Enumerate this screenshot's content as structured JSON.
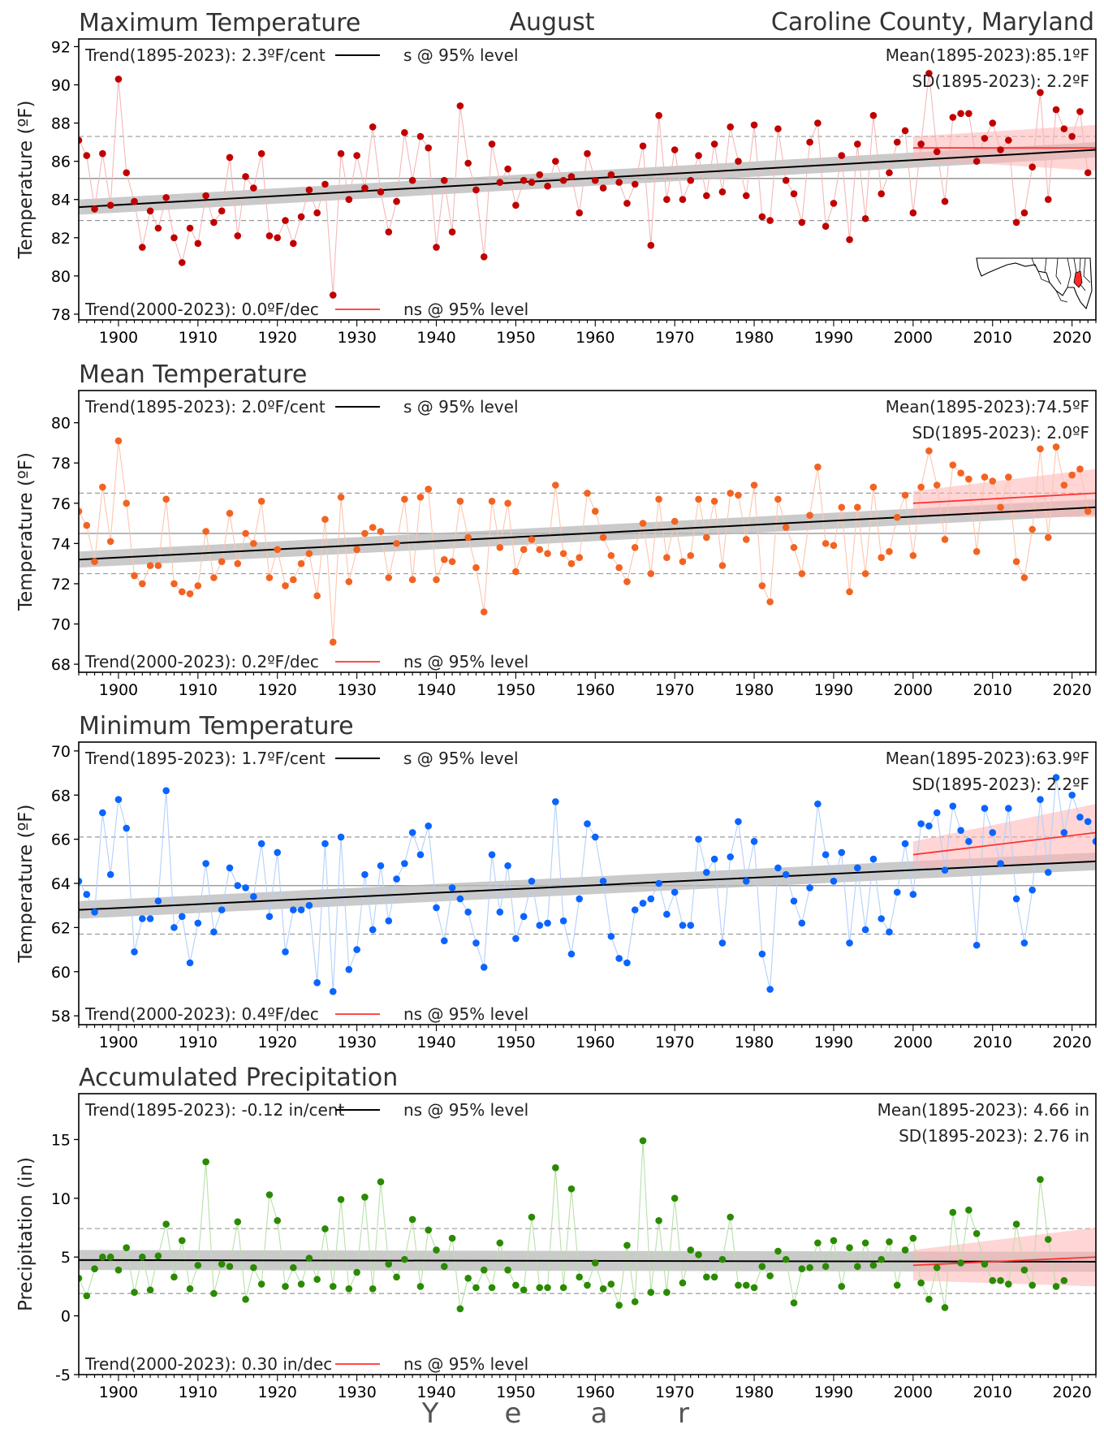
{
  "header": {
    "month": "August",
    "location": "Caroline County, Maryland"
  },
  "xaxis": {
    "label": "Y e a r",
    "letters": [
      "Y",
      "e",
      "a",
      "r"
    ],
    "ticks": [
      "1900",
      "1910",
      "1920",
      "1930",
      "1940",
      "1950",
      "1960",
      "1970",
      "1980",
      "1990",
      "2000",
      "2010",
      "2020"
    ],
    "range": [
      1895,
      2023
    ]
  },
  "colors": {
    "tmax": "#c00000",
    "tavg": "#f26322",
    "tmin": "#0a64ff",
    "pcpn": "#2a8a00",
    "trend_long": "#000000",
    "trend_recent": "#ff3333",
    "band_long": "#b8b8b8",
    "band_recent": "#ffb3b3"
  },
  "chart_data": [
    {
      "type": "line",
      "panel": "tmax",
      "title": "Maximum Temperature",
      "ylabel": "Temperature (ºF)",
      "yticks": [
        "78",
        "80",
        "82",
        "84",
        "86",
        "88",
        "90",
        "92"
      ],
      "ylim": [
        77.7,
        92.4
      ],
      "trend_long_text": "Trend(1895-2023):  2.3ºF/cent",
      "trend_long_sig": "s @ 95% level",
      "trend_recent_text": "Trend(2000-2023):  0.0ºF/dec",
      "trend_recent_sig": "ns @ 95% level",
      "mean_text": "Mean(1895-2023):85.1ºF",
      "sd_text": "SD(1895-2023): 2.2ºF",
      "mean": 85.1,
      "sd": 2.2,
      "trend_long": {
        "start": 83.6,
        "end": 86.6,
        "band": 0.4
      },
      "trend_recent": {
        "start": 86.7,
        "end": 86.7,
        "band_start": 0.6,
        "band_end": 1.2
      },
      "has_map": true,
      "years_start": 1895,
      "values": [
        87.1,
        86.3,
        83.5,
        86.4,
        83.7,
        90.3,
        85.4,
        83.9,
        81.5,
        83.4,
        82.5,
        84.1,
        82.0,
        80.7,
        82.5,
        81.7,
        84.2,
        82.8,
        83.4,
        86.2,
        82.1,
        85.2,
        84.6,
        86.4,
        82.1,
        82.0,
        82.9,
        81.7,
        83.1,
        84.5,
        83.3,
        84.8,
        79.0,
        86.4,
        84.0,
        86.3,
        84.6,
        87.8,
        84.4,
        82.3,
        83.9,
        87.5,
        85.0,
        87.3,
        86.7,
        81.5,
        85.0,
        82.3,
        88.9,
        85.9,
        84.5,
        81.0,
        86.9,
        84.9,
        85.6,
        83.7,
        85.0,
        84.9,
        85.3,
        84.7,
        86.0,
        85.0,
        85.2,
        83.3,
        86.4,
        85.0,
        84.6,
        85.3,
        84.9,
        83.8,
        84.8,
        86.8,
        81.6,
        88.4,
        84.0,
        86.6,
        84.0,
        85.0,
        86.3,
        84.2,
        86.9,
        84.4,
        87.8,
        86.0,
        84.2,
        87.9,
        83.1,
        82.9,
        87.7,
        85.0,
        84.3,
        82.8,
        87.0,
        88.0,
        82.6,
        83.8,
        86.3,
        81.9,
        86.9,
        83.0,
        88.4,
        84.3,
        85.4,
        87.0,
        87.6,
        83.3,
        86.9,
        90.6,
        86.5,
        83.9,
        88.3,
        88.5,
        88.5,
        86.0,
        87.2,
        88.0,
        86.6,
        87.1,
        82.8,
        83.3,
        85.7,
        89.6,
        84.0,
        88.7,
        87.7,
        87.3,
        88.6,
        85.4
      ]
    },
    {
      "type": "line",
      "panel": "tavg",
      "title": "Mean Temperature",
      "ylabel": "Temperature (ºF)",
      "yticks": [
        "68",
        "70",
        "72",
        "74",
        "76",
        "78",
        "80"
      ],
      "ylim": [
        67.6,
        81.6
      ],
      "trend_long_text": "Trend(1895-2023):  2.0ºF/cent",
      "trend_long_sig": "s @ 95% level",
      "trend_recent_text": "Trend(2000-2023):  0.2ºF/dec",
      "trend_recent_sig": "ns @ 95% level",
      "mean_text": "Mean(1895-2023):74.5ºF",
      "sd_text": "SD(1895-2023): 2.0ºF",
      "mean": 74.5,
      "sd": 2.0,
      "trend_long": {
        "start": 73.2,
        "end": 75.8,
        "band": 0.4
      },
      "trend_recent": {
        "start": 76.0,
        "end": 76.5,
        "band_start": 0.6,
        "band_end": 1.2
      },
      "has_map": false,
      "years_start": 1895,
      "values": [
        75.6,
        74.9,
        73.1,
        76.8,
        74.1,
        79.1,
        76.0,
        72.4,
        72.0,
        72.9,
        72.9,
        76.2,
        72.0,
        71.6,
        71.5,
        71.9,
        74.6,
        72.3,
        73.1,
        75.5,
        73.0,
        74.5,
        74.0,
        76.1,
        72.3,
        73.7,
        71.9,
        72.2,
        73.0,
        73.5,
        71.4,
        75.2,
        69.1,
        76.3,
        72.1,
        73.7,
        74.5,
        74.8,
        74.6,
        72.3,
        74.0,
        76.2,
        72.2,
        76.3,
        76.7,
        72.2,
        73.2,
        73.1,
        76.1,
        74.3,
        72.8,
        70.6,
        76.1,
        73.8,
        76.0,
        72.6,
        73.7,
        74.2,
        73.7,
        73.5,
        76.9,
        73.5,
        73.0,
        73.3,
        76.5,
        75.6,
        74.3,
        73.4,
        72.8,
        72.1,
        73.8,
        75.0,
        72.5,
        76.2,
        73.3,
        75.1,
        73.1,
        73.4,
        76.2,
        74.3,
        76.1,
        72.9,
        76.5,
        76.4,
        74.2,
        76.9,
        71.9,
        71.1,
        76.2,
        74.8,
        73.8,
        72.5,
        75.4,
        77.8,
        74.0,
        73.9,
        75.8,
        71.6,
        75.8,
        72.5,
        76.8,
        73.3,
        73.6,
        75.3,
        76.4,
        73.4,
        76.8,
        78.6,
        76.9,
        74.2,
        77.9,
        77.5,
        77.2,
        73.6,
        77.3,
        77.1,
        75.8,
        77.3,
        73.1,
        72.3,
        74.7,
        78.7,
        74.3,
        78.8,
        76.9,
        77.4,
        77.7,
        75.6
      ]
    },
    {
      "type": "line",
      "panel": "tmin",
      "title": "Minimum Temperature",
      "ylabel": "Temperature (ºF)",
      "yticks": [
        "58",
        "60",
        "62",
        "64",
        "66",
        "68",
        "70"
      ],
      "ylim": [
        57.6,
        70.4
      ],
      "trend_long_text": "Trend(1895-2023):  1.7ºF/cent",
      "trend_long_sig": "s @ 95% level",
      "trend_recent_text": "Trend(2000-2023):  0.4ºF/dec",
      "trend_recent_sig": "ns @ 95% level",
      "mean_text": "Mean(1895-2023):63.9ºF",
      "sd_text": "SD(1895-2023): 2.2ºF",
      "mean": 63.9,
      "sd": 2.2,
      "trend_long": {
        "start": 62.8,
        "end": 65.0,
        "band": 0.4
      },
      "trend_recent": {
        "start": 65.3,
        "end": 66.3,
        "band_start": 0.6,
        "band_end": 1.3
      },
      "has_map": false,
      "years_start": 1895,
      "values": [
        64.1,
        63.5,
        62.7,
        67.2,
        64.4,
        67.8,
        66.5,
        60.9,
        62.4,
        62.4,
        63.2,
        68.2,
        62.0,
        62.5,
        60.4,
        62.2,
        64.9,
        61.8,
        62.8,
        64.7,
        63.9,
        63.8,
        63.4,
        65.8,
        62.5,
        65.4,
        60.9,
        62.8,
        62.8,
        63.0,
        59.5,
        65.8,
        59.1,
        66.1,
        60.1,
        61.0,
        64.4,
        61.9,
        64.8,
        62.3,
        64.2,
        64.9,
        66.3,
        65.3,
        66.6,
        62.9,
        61.4,
        63.8,
        63.3,
        62.7,
        61.3,
        60.2,
        65.3,
        62.7,
        64.8,
        61.5,
        62.5,
        64.1,
        62.1,
        62.2,
        67.7,
        62.3,
        60.8,
        63.3,
        66.7,
        66.1,
        64.1,
        61.6,
        60.6,
        60.4,
        62.8,
        63.1,
        63.3,
        64.0,
        62.6,
        63.6,
        62.1,
        62.1,
        66.0,
        64.5,
        65.1,
        61.3,
        65.2,
        66.8,
        64.1,
        65.9,
        60.8,
        59.2,
        64.7,
        64.4,
        63.2,
        62.2,
        63.8,
        67.6,
        65.3,
        64.1,
        65.4,
        61.3,
        64.7,
        61.9,
        65.1,
        62.4,
        61.8,
        63.6,
        65.8,
        63.5,
        66.7,
        66.6,
        67.2,
        64.6,
        67.5,
        66.4,
        65.9,
        61.2,
        67.4,
        66.3,
        64.9,
        67.4,
        63.3,
        61.3,
        63.7,
        67.8,
        64.5,
        68.8,
        66.3,
        68.0,
        67.0,
        66.8,
        65.9
      ]
    },
    {
      "type": "line",
      "panel": "pcpn",
      "title": "Accumulated Precipitation",
      "ylabel": "Precipitation (in)",
      "yticks": [
        "-5",
        "0",
        "5",
        "10",
        "15"
      ],
      "ylim": [
        -5,
        18.9
      ],
      "trend_long_text": "Trend(1895-2023): -0.12 in/cent",
      "trend_long_sig": "ns @ 95% level",
      "trend_recent_text": "Trend(2000-2023):  0.30 in/dec",
      "trend_recent_sig": "ns @ 95% level",
      "mean_text": "Mean(1895-2023): 4.66 in",
      "sd_text": "SD(1895-2023): 2.76 in",
      "mean": 4.66,
      "sd": 2.76,
      "trend_long": {
        "start": 4.75,
        "end": 4.6,
        "band": 0.85
      },
      "trend_recent": {
        "start": 4.3,
        "end": 5.0,
        "band_start": 1.3,
        "band_end": 2.5
      },
      "has_map": false,
      "years_start": 1895,
      "values": [
        3.2,
        1.7,
        4.0,
        5.0,
        5.0,
        3.9,
        5.8,
        2.0,
        5.0,
        2.2,
        5.1,
        7.8,
        3.3,
        6.4,
        2.3,
        4.3,
        13.1,
        1.9,
        4.4,
        4.2,
        8.0,
        1.4,
        4.1,
        2.7,
        10.3,
        8.1,
        2.5,
        4.1,
        2.7,
        4.9,
        3.1,
        7.4,
        2.5,
        9.9,
        2.3,
        3.7,
        10.1,
        2.3,
        11.4,
        4.4,
        3.3,
        4.8,
        8.2,
        2.5,
        7.3,
        5.6,
        4.2,
        6.6,
        0.6,
        3.2,
        2.4,
        3.9,
        2.4,
        6.2,
        3.9,
        2.6,
        2.2,
        8.4,
        2.4,
        2.4,
        12.6,
        2.4,
        10.8,
        3.3,
        2.6,
        4.5,
        2.3,
        2.7,
        0.9,
        6.0,
        1.2,
        14.9,
        2.0,
        8.1,
        2.0,
        10.0,
        2.8,
        5.6,
        5.2,
        3.3,
        3.3,
        4.8,
        8.4,
        2.6,
        2.6,
        2.4,
        4.2,
        3.4,
        5.5,
        4.8,
        1.1,
        4.0,
        4.1,
        6.2,
        4.2,
        6.4,
        2.5,
        5.8,
        4.2,
        6.2,
        4.3,
        4.8,
        6.3,
        2.6,
        5.6,
        6.6,
        2.8,
        1.4,
        4.1,
        0.7,
        8.8,
        4.5,
        9.0,
        7.0,
        4.4,
        3.0,
        3.0,
        2.7,
        7.8,
        3.9,
        2.6,
        11.6,
        6.5,
        2.5,
        3.0
      ]
    }
  ]
}
